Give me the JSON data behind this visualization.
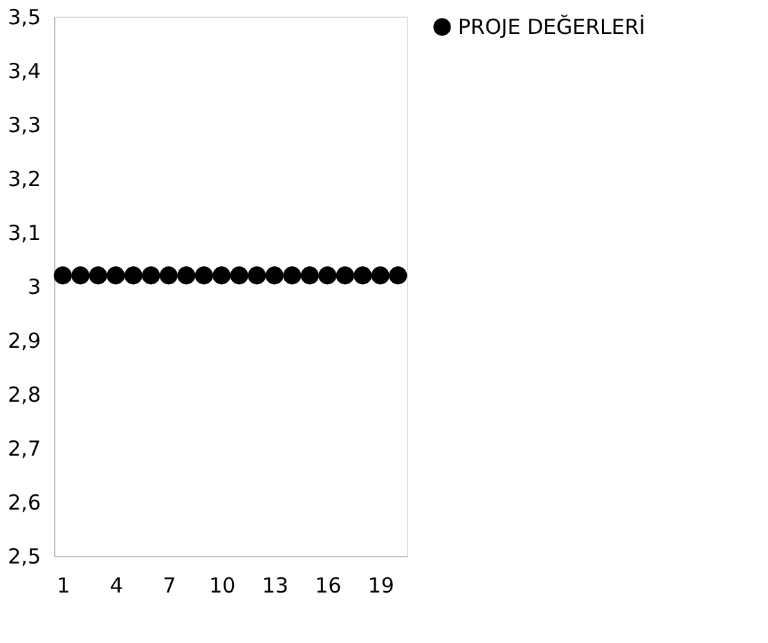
{
  "chart_data": {
    "type": "scatter",
    "categories": [
      "1",
      null,
      null,
      "4",
      null,
      null,
      "7",
      null,
      null,
      "10",
      null,
      null,
      "13",
      null,
      null,
      "16",
      null,
      null,
      "19",
      null
    ],
    "series": [
      {
        "name": "PROJE DEĞERLERİ",
        "color": "#000000",
        "values": [
          3.02,
          3.02,
          3.02,
          3.02,
          3.02,
          3.02,
          3.02,
          3.02,
          3.02,
          3.02,
          3.02,
          3.02,
          3.02,
          3.02,
          3.02,
          3.02,
          3.02,
          3.02,
          3.02,
          3.02
        ]
      }
    ],
    "ylim": [
      2.5,
      3.5
    ],
    "yticks": [
      {
        "value": 2.5,
        "label": "2,5"
      },
      {
        "value": 2.6,
        "label": "2,6"
      },
      {
        "value": 2.7,
        "label": "2,7"
      },
      {
        "value": 2.8,
        "label": "2,8"
      },
      {
        "value": 2.9,
        "label": "2,9"
      },
      3,
      {
        "value": 3.1,
        "label": "3,1"
      },
      {
        "value": 3.2,
        "label": "3,2"
      },
      {
        "value": 3.3,
        "label": "3,3"
      },
      {
        "value": 3.4,
        "label": "3,4"
      },
      {
        "value": 3.5,
        "label": "3,5"
      }
    ],
    "grid": false,
    "legend": "right",
    "marker": "circle"
  }
}
